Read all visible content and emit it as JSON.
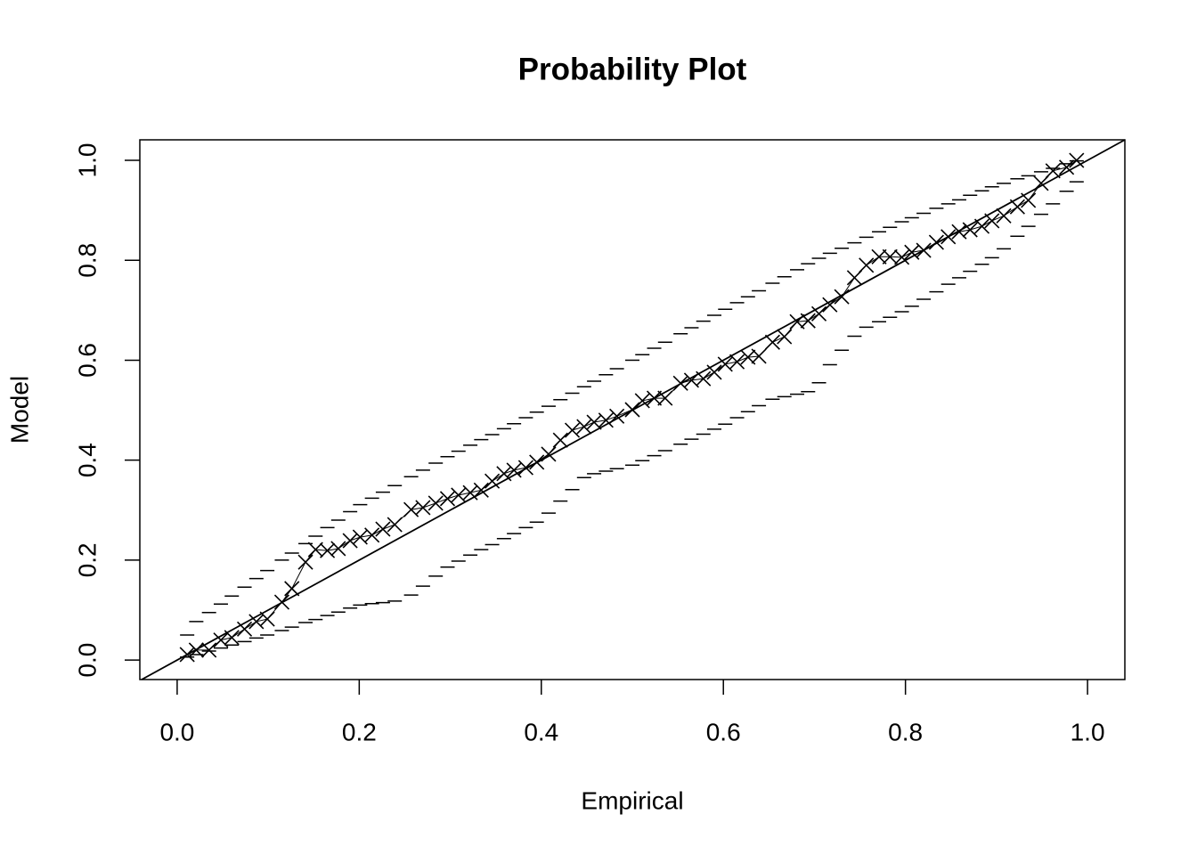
{
  "chart_data": {
    "type": "probability",
    "title": "Probability Plot",
    "xlabel": "Empirical",
    "ylabel": "Model",
    "xlim": [
      -0.041,
      1.041
    ],
    "ylim": [
      -0.039,
      1.041
    ],
    "xticks": [
      {
        "value": 0,
        "label": "0.0"
      },
      0.2,
      0.4,
      0.6,
      0.8,
      {
        "value": 1,
        "label": "1.0"
      }
    ],
    "yticks": [
      {
        "value": 0,
        "label": "0.0"
      },
      0.2,
      0.4,
      0.6,
      0.8,
      {
        "value": 1,
        "label": "1.0"
      }
    ],
    "color": "#000000",
    "x": [
      0.011,
      0.021,
      0.035,
      0.048,
      0.06,
      0.074,
      0.087,
      0.099,
      0.115,
      0.126,
      0.141,
      0.152,
      0.165,
      0.177,
      0.19,
      0.201,
      0.214,
      0.226,
      0.239,
      0.257,
      0.27,
      0.284,
      0.297,
      0.309,
      0.322,
      0.334,
      0.346,
      0.359,
      0.37,
      0.383,
      0.395,
      0.408,
      0.421,
      0.434,
      0.447,
      0.458,
      0.471,
      0.483,
      0.5,
      0.511,
      0.524,
      0.536,
      0.553,
      0.565,
      0.578,
      0.59,
      0.602,
      0.615,
      0.627,
      0.639,
      0.654,
      0.667,
      0.681,
      0.693,
      0.705,
      0.717,
      0.73,
      0.744,
      0.757,
      0.771,
      0.783,
      0.796,
      0.807,
      0.82,
      0.834,
      0.847,
      0.859,
      0.871,
      0.884,
      0.895,
      0.908,
      0.923,
      0.935,
      0.949,
      0.962,
      0.977,
      0.988
    ],
    "values": [
      0.011,
      0.02,
      0.02,
      0.04,
      0.045,
      0.062,
      0.077,
      0.082,
      0.116,
      0.143,
      0.196,
      0.221,
      0.219,
      0.223,
      0.239,
      0.246,
      0.25,
      0.262,
      0.271,
      0.301,
      0.305,
      0.314,
      0.323,
      0.33,
      0.335,
      0.34,
      0.358,
      0.373,
      0.38,
      0.385,
      0.396,
      0.412,
      0.44,
      0.46,
      0.467,
      0.476,
      0.48,
      0.488,
      0.501,
      0.519,
      0.524,
      0.524,
      0.554,
      0.56,
      0.563,
      0.576,
      0.592,
      0.597,
      0.606,
      0.608,
      0.636,
      0.647,
      0.677,
      0.679,
      0.693,
      0.711,
      0.727,
      0.765,
      0.79,
      0.807,
      0.807,
      0.806,
      0.816,
      0.82,
      0.836,
      0.847,
      0.857,
      0.861,
      0.868,
      0.879,
      0.889,
      0.907,
      0.92,
      0.954,
      0.979,
      0.986,
      1.0
    ],
    "upper": [
      0.05,
      0.077,
      0.095,
      0.112,
      0.128,
      0.146,
      0.163,
      0.179,
      0.2,
      0.214,
      0.233,
      0.248,
      0.265,
      0.28,
      0.297,
      0.311,
      0.324,
      0.336,
      0.349,
      0.367,
      0.38,
      0.394,
      0.407,
      0.418,
      0.43,
      0.441,
      0.451,
      0.463,
      0.473,
      0.485,
      0.496,
      0.508,
      0.521,
      0.534,
      0.547,
      0.558,
      0.571,
      0.583,
      0.6,
      0.611,
      0.624,
      0.636,
      0.653,
      0.665,
      0.678,
      0.69,
      0.702,
      0.715,
      0.727,
      0.739,
      0.754,
      0.767,
      0.781,
      0.793,
      0.804,
      0.814,
      0.824,
      0.835,
      0.846,
      0.857,
      0.866,
      0.877,
      0.885,
      0.894,
      0.904,
      0.913,
      0.921,
      0.93,
      0.939,
      0.947,
      0.954,
      0.963,
      0.969,
      0.977,
      0.984,
      0.993,
      0.999
    ],
    "lower": [
      0.006,
      0.011,
      0.018,
      0.024,
      0.03,
      0.037,
      0.044,
      0.05,
      0.059,
      0.066,
      0.075,
      0.081,
      0.089,
      0.096,
      0.104,
      0.11,
      0.113,
      0.115,
      0.118,
      0.13,
      0.148,
      0.168,
      0.186,
      0.198,
      0.21,
      0.221,
      0.231,
      0.243,
      0.253,
      0.265,
      0.276,
      0.294,
      0.318,
      0.341,
      0.365,
      0.373,
      0.378,
      0.383,
      0.39,
      0.399,
      0.409,
      0.419,
      0.432,
      0.442,
      0.452,
      0.462,
      0.472,
      0.485,
      0.497,
      0.509,
      0.522,
      0.527,
      0.532,
      0.537,
      0.555,
      0.591,
      0.62,
      0.648,
      0.666,
      0.677,
      0.686,
      0.697,
      0.708,
      0.722,
      0.737,
      0.752,
      0.765,
      0.778,
      0.792,
      0.805,
      0.823,
      0.848,
      0.868,
      0.892,
      0.913,
      0.938,
      0.957
    ]
  }
}
